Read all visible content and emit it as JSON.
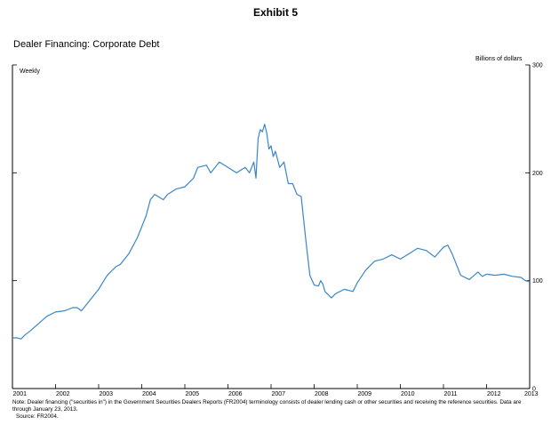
{
  "header": {
    "exhibit": "Exhibit 5",
    "title": "Dealer Financing: Corporate Debt",
    "units": "Billions of dollars",
    "frequency": "Weekly"
  },
  "footer": {
    "note": "Note: Dealer financing (\"securities in\") in the Government Securities Dealers Reports (FR2004) terminology consists of dealer lending cash or other securities and receiving the reference securities. Data are through January 23, 2013.",
    "source": "Source: FR2004."
  },
  "colors": {
    "series": "#3a86c8",
    "axis": "#000000"
  },
  "chart_data": {
    "type": "line",
    "title": "Dealer Financing: Corporate Debt",
    "ylabel": "Billions of dollars",
    "xlim": [
      2001,
      2013
    ],
    "ylim": [
      0,
      300
    ],
    "x_ticks": [
      2001,
      2002,
      2003,
      2004,
      2005,
      2006,
      2007,
      2008,
      2009,
      2010,
      2011,
      2012,
      2013
    ],
    "y_ticks": [
      0,
      100,
      200,
      300
    ],
    "y_axis_side": "right",
    "grid": false,
    "legend": "none",
    "series": [
      {
        "x": [
          2001.0,
          2001.1,
          2001.2,
          2001.3,
          2001.4,
          2001.6,
          2001.8,
          2002.0,
          2002.2,
          2002.4,
          2002.5,
          2002.6,
          2002.8,
          2003.0,
          2003.2,
          2003.4,
          2003.5,
          2003.7,
          2003.9,
          2004.0,
          2004.1,
          2004.2,
          2004.3,
          2004.5,
          2004.6,
          2004.8,
          2005.0,
          2005.2,
          2005.3,
          2005.5,
          2005.6,
          2005.8,
          2006.0,
          2006.2,
          2006.4,
          2006.5,
          2006.6,
          2006.65,
          2006.7,
          2006.75,
          2006.8,
          2006.85,
          2006.9,
          2006.95,
          2007.0,
          2007.05,
          2007.1,
          2007.2,
          2007.3,
          2007.4,
          2007.5,
          2007.6,
          2007.7,
          2007.8,
          2007.9,
          2008.0,
          2008.1,
          2008.15,
          2008.2,
          2008.25,
          2008.3,
          2008.4,
          2008.5,
          2008.7,
          2008.9,
          2009.0,
          2009.2,
          2009.4,
          2009.6,
          2009.8,
          2010.0,
          2010.2,
          2010.4,
          2010.6,
          2010.8,
          2011.0,
          2011.1,
          2011.2,
          2011.4,
          2011.6,
          2011.8,
          2011.9,
          2012.0,
          2012.2,
          2012.4,
          2012.6,
          2012.8,
          2012.9,
          2013.0
        ],
        "values": [
          47,
          47,
          46,
          50,
          53,
          60,
          67,
          71,
          72,
          75,
          75,
          72,
          82,
          92,
          105,
          113,
          115,
          125,
          140,
          150,
          160,
          175,
          180,
          175,
          180,
          185,
          187,
          195,
          205,
          207,
          200,
          210,
          205,
          200,
          205,
          200,
          210,
          195,
          232,
          240,
          238,
          245,
          237,
          222,
          225,
          215,
          220,
          205,
          210,
          190,
          190,
          180,
          178,
          140,
          105,
          96,
          95,
          100,
          97,
          90,
          88,
          84,
          88,
          92,
          90,
          98,
          110,
          118,
          120,
          124,
          120,
          125,
          130,
          128,
          122,
          131,
          133,
          125,
          105,
          101,
          108,
          104,
          106,
          105,
          106,
          104,
          103,
          100,
          99
        ]
      }
    ]
  }
}
